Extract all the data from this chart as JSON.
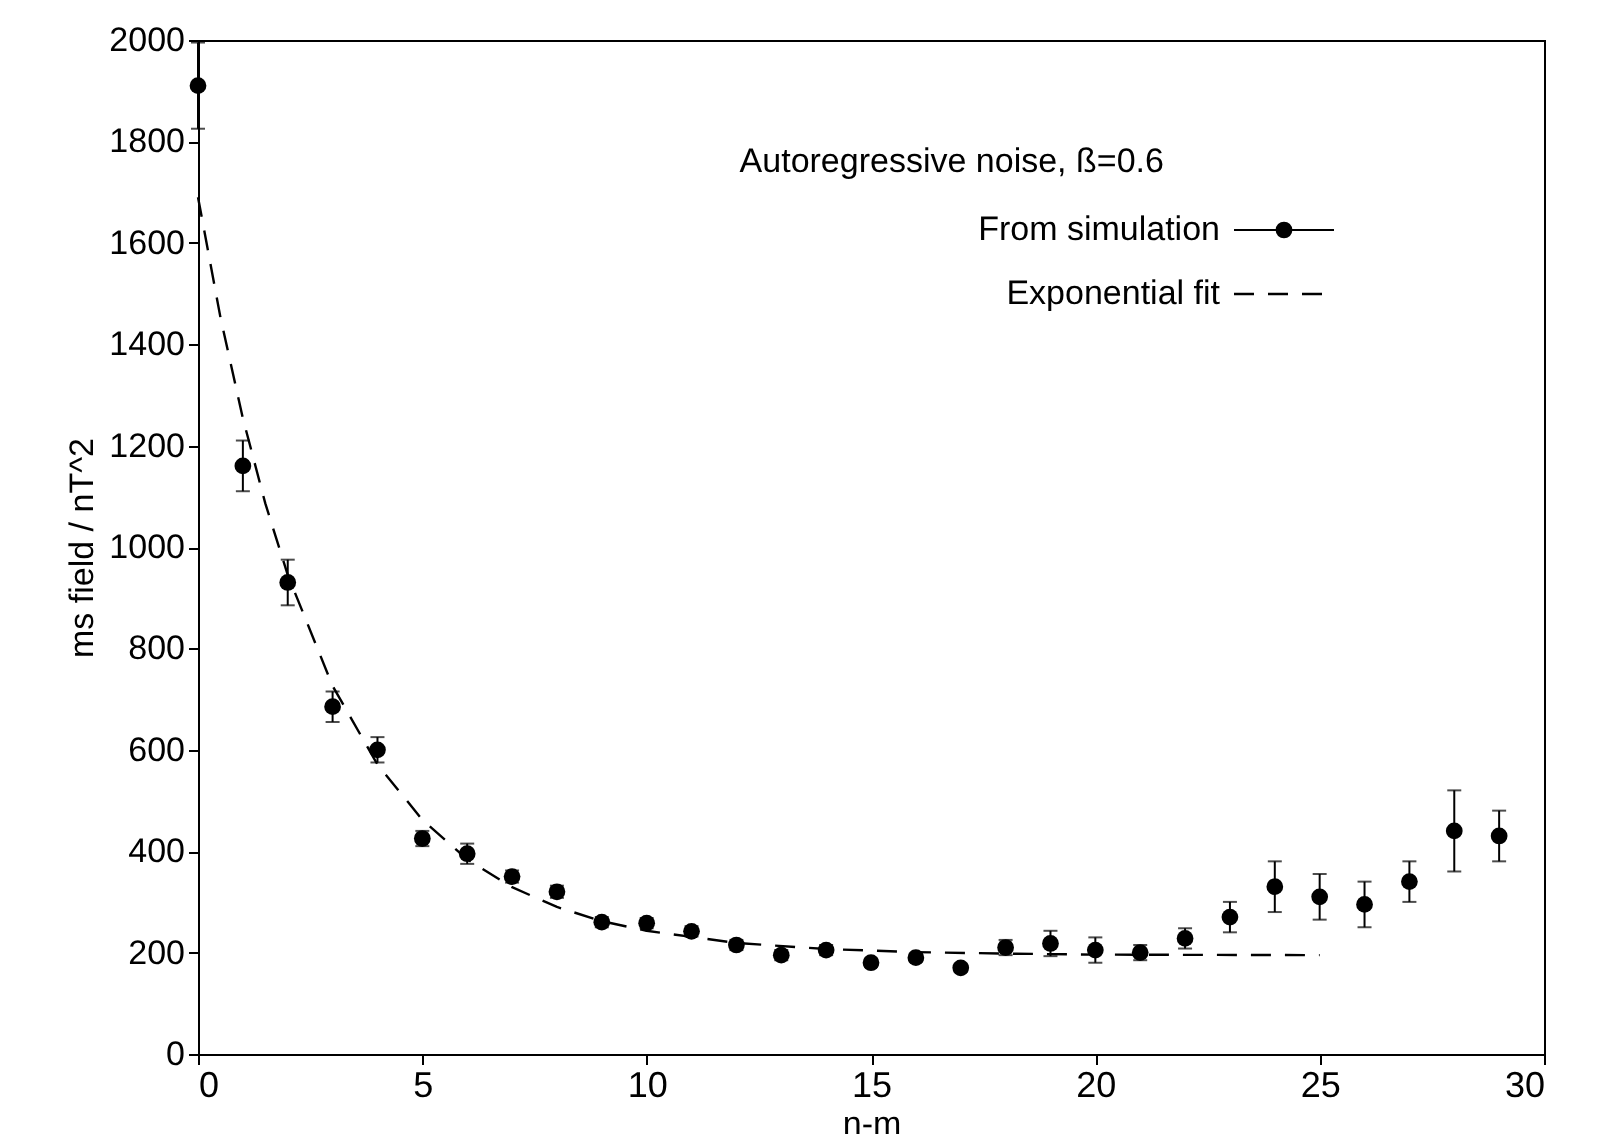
{
  "chart_data": {
    "type": "scatter",
    "xlabel": "n-m",
    "ylabel": "ms field / nT^2",
    "annotations": [
      "Autoregressive noise, ß=0.6"
    ],
    "xlim": [
      0,
      30
    ],
    "xticks": [
      0,
      5,
      10,
      15,
      20,
      25,
      30
    ],
    "ylim": [
      0,
      2000
    ],
    "yticks": [
      0,
      200,
      400,
      600,
      800,
      1000,
      1200,
      1400,
      1600,
      1800,
      2000
    ],
    "grid": false,
    "legend": "top right",
    "series": [
      {
        "name": "From simulation",
        "color": "#000000",
        "marker": "circle",
        "x": [
          0,
          1,
          2,
          3,
          4,
          5,
          6,
          7,
          8,
          9,
          10,
          11,
          12,
          13,
          14,
          15,
          16,
          17,
          18,
          19,
          20,
          21,
          22,
          23,
          24,
          25,
          26,
          27,
          28,
          29
        ],
        "values": [
          1910,
          1160,
          930,
          685,
          600,
          425,
          395,
          350,
          320,
          260,
          258,
          242,
          215,
          195,
          205,
          180,
          190,
          170,
          210,
          218,
          205,
          200,
          228,
          270,
          330,
          310,
          295,
          340,
          440,
          430
        ],
        "errors": [
          85,
          50,
          45,
          30,
          25,
          15,
          20,
          12,
          12,
          10,
          10,
          10,
          10,
          10,
          10,
          8,
          8,
          8,
          15,
          25,
          25,
          15,
          20,
          30,
          50,
          45,
          45,
          40,
          80,
          50
        ]
      },
      {
        "name": "Exponential fit",
        "type": "line",
        "color": "#000000",
        "line_style": "dashed",
        "x": [
          0,
          0.5,
          1,
          1.5,
          2,
          3,
          4,
          5,
          6,
          7,
          8,
          9,
          10,
          12,
          14,
          16,
          18,
          20,
          25
        ],
        "values": [
          1690,
          1453,
          1254,
          1086,
          945,
          726,
          571,
          462,
          384,
          329,
          290,
          262,
          243,
          219,
          207,
          201,
          198,
          196,
          195
        ]
      }
    ]
  }
}
